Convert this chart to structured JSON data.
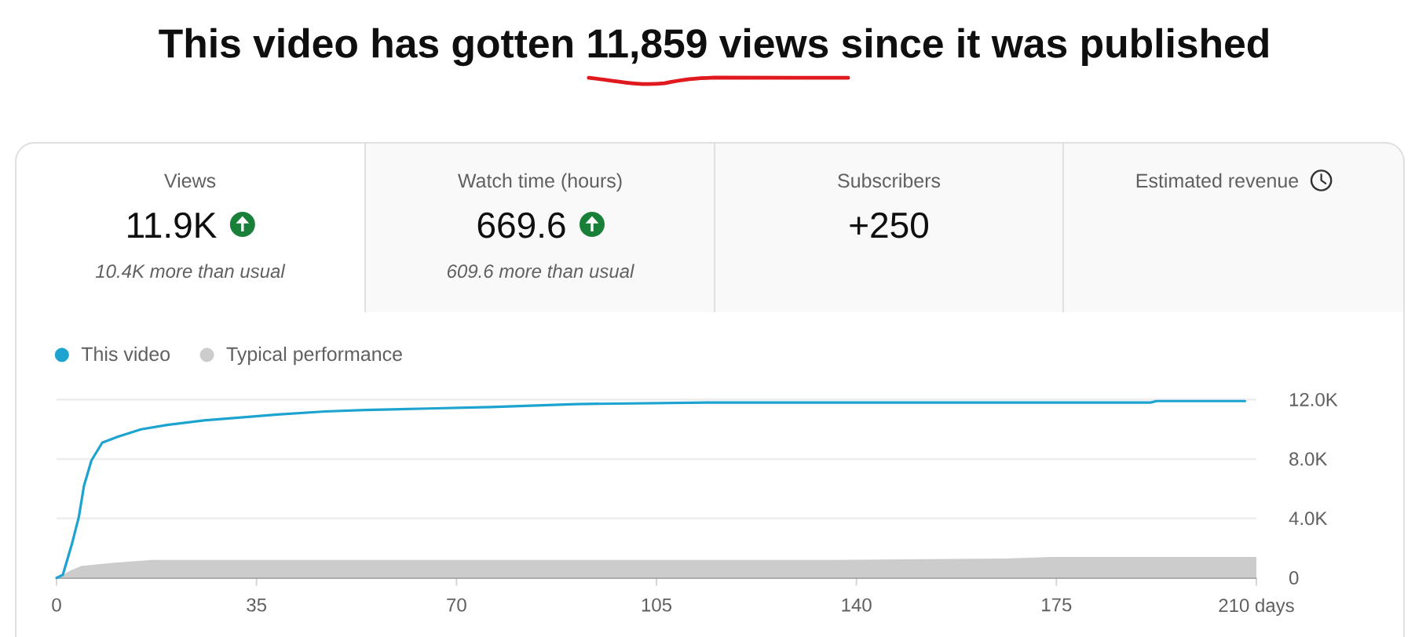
{
  "chart_data": [
    {
      "type": "other",
      "title": "This video has gotten 11,859 views since it was published",
      "annotations": [
        "Views",
        "11.9K",
        "10.4K more than usual",
        "Watch time (hours)",
        "669.6",
        "609.6 more than usual",
        "Subscribers",
        "+250",
        "Estimated revenue"
      ]
    },
    {
      "type": "line",
      "legend": "top left",
      "grid": "y",
      "xlim": [
        0,
        210
      ],
      "xticks": [
        0,
        35,
        70,
        105,
        140,
        175,
        {
          "value": 210,
          "label": "210 days"
        }
      ],
      "ylim": [
        0,
        12000
      ],
      "yticks": [
        0,
        {
          "value": 4000,
          "label": "4.0K"
        },
        {
          "value": 8000,
          "label": "8.0K"
        },
        {
          "value": 12000,
          "label": "12.0K"
        }
      ],
      "series": [
        {
          "name": "This video",
          "color": "#1ca3cf",
          "x": [
            0,
            1.1,
            2.7,
            3.9,
            4.8,
            6.1,
            8,
            10.7,
            14.8,
            19.4,
            25.8,
            32.3,
            38.7,
            47,
            54,
            65,
            76,
            91,
            114,
            150,
            191.5,
            192.5,
            208
          ],
          "values": [
            0,
            200,
            2300,
            4100,
            6200,
            7900,
            9100,
            9500,
            10000,
            10300,
            10600,
            10800,
            11000,
            11200,
            11300,
            11400,
            11500,
            11700,
            11800,
            11800,
            11800,
            11900,
            11900
          ]
        },
        {
          "name": "Typical performance",
          "type": "area",
          "color": "#cccccc",
          "x": [
            0,
            1.1,
            2.5,
            4.3,
            9.3,
            16.7,
            50,
            111,
            136,
            166,
            174,
            210
          ],
          "values": [
            0,
            200,
            500,
            800,
            1000,
            1200,
            1200,
            1200,
            1200,
            1300,
            1400,
            1400
          ]
        }
      ]
    }
  ]
}
